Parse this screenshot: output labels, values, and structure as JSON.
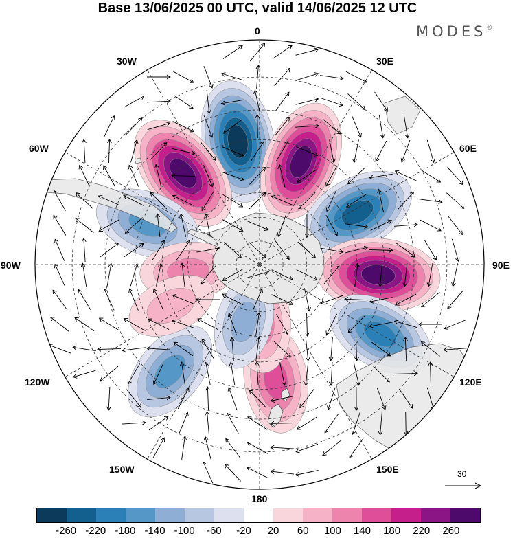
{
  "title": "Base 13/06/2025 00 UTC, valid 14/06/2025 12 UTC",
  "brand": {
    "name": "MODES",
    "mark": "®"
  },
  "longitude_labels": [
    "0",
    "30E",
    "60E",
    "90E",
    "120E",
    "150E",
    "180",
    "150W",
    "120W",
    "90W",
    "60W",
    "30W"
  ],
  "reference_vector": {
    "label": "30",
    "icon": "arrow-right-icon"
  },
  "map": {
    "projection": "south-polar-stereographic",
    "land_color": "#e8e8e8",
    "graticule": "dashed",
    "anomaly_centers": [
      {
        "lon": -10,
        "lat": -40,
        "value": -250
      },
      {
        "lon": 22,
        "lat": -45,
        "value": 250
      },
      {
        "lon": -40,
        "lat": -42,
        "value": 260
      },
      {
        "lon": 62,
        "lat": -45,
        "value": -220
      },
      {
        "lon": -70,
        "lat": -42,
        "value": -160
      },
      {
        "lon": 95,
        "lat": -42,
        "value": 260
      },
      {
        "lon": 120,
        "lat": -35,
        "value": -180
      },
      {
        "lon": -140,
        "lat": -35,
        "value": -160
      },
      {
        "lon": 172,
        "lat": -43,
        "value": 160
      },
      {
        "lon": 178,
        "lat": -65,
        "value": 110
      },
      {
        "lon": -165,
        "lat": -65,
        "value": -90
      },
      {
        "lon": -95,
        "lat": -60,
        "value": 100
      },
      {
        "lon": -115,
        "lat": -50,
        "value": 60
      }
    ]
  },
  "colorbar": {
    "ticks": [
      "-260",
      "-220",
      "-180",
      "-140",
      "-100",
      "-60",
      "-20",
      "20",
      "60",
      "100",
      "140",
      "180",
      "220",
      "260"
    ],
    "colors": [
      "#0b3a5a",
      "#135f8e",
      "#2b80b8",
      "#5598c7",
      "#8eaed5",
      "#b7c6e1",
      "#dde1ef",
      "#ffffff",
      "#f9d6dc",
      "#f6b3c8",
      "#ec84ae",
      "#de4e99",
      "#c41f8b",
      "#8c1586",
      "#4e0a6a"
    ]
  }
}
